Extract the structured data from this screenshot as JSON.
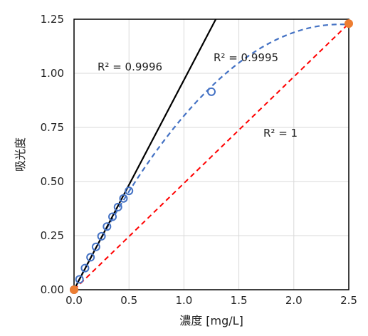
{
  "chart_data": {
    "type": "scatter",
    "xlabel": "濃度 [mg/L]",
    "ylabel": "吸光度",
    "xlim": [
      0,
      2.5
    ],
    "ylim": [
      0,
      1.25
    ],
    "x_ticks": [
      "0.0",
      "0.5",
      "1.0",
      "1.5",
      "2.0",
      "2.5"
    ],
    "y_ticks": [
      "0.00",
      "0.25",
      "0.50",
      "0.75",
      "1.00",
      "1.25"
    ],
    "grid": true,
    "legend": "none",
    "series": [
      {
        "marker": "open-circle",
        "color": "#4472C4",
        "points": [
          [
            0.0,
            0.0
          ],
          [
            0.05,
            0.048
          ],
          [
            0.1,
            0.1
          ],
          [
            0.15,
            0.15
          ],
          [
            0.2,
            0.198
          ],
          [
            0.25,
            0.247
          ],
          [
            0.3,
            0.292
          ],
          [
            0.35,
            0.337
          ],
          [
            0.4,
            0.382
          ],
          [
            0.45,
            0.422
          ],
          [
            0.5,
            0.457
          ],
          [
            1.25,
            0.915
          ]
        ]
      },
      {
        "marker": "filled-circle",
        "color": "#ED7D31",
        "points": [
          [
            0.0,
            0.0
          ],
          [
            2.5,
            1.23
          ]
        ]
      }
    ],
    "trendlines": [
      {
        "style": "solid",
        "color": "#000000",
        "from": [
          0.0,
          0.0
        ],
        "to": [
          1.29,
          1.25
        ],
        "r2_label": "R² = 0.9996"
      },
      {
        "style": "dashed",
        "color": "#4472C4",
        "kind": "polynomial",
        "r2_label": "R² = 0.9995"
      },
      {
        "style": "dashed",
        "color": "#FF0000",
        "from": [
          0.0,
          0.0
        ],
        "to": [
          2.5,
          1.23
        ],
        "r2_label": "R² = 1"
      }
    ]
  }
}
